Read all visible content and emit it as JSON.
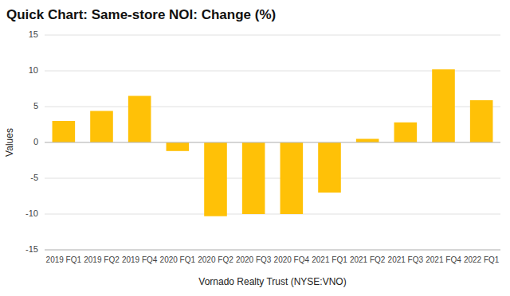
{
  "chart_data": {
    "type": "bar",
    "title": "Quick Chart: Same-store NOI: Change (%)",
    "xlabel": "Vornado Realty Trust (NYSE:VNO)",
    "ylabel": "Values",
    "categories": [
      "2019 FQ1",
      "2019 FQ2",
      "2019 FQ4",
      "2020 FQ1",
      "2020 FQ2",
      "2020 FQ3",
      "2020 FQ4",
      "2021 FQ1",
      "2021 FQ2",
      "2021 FQ3",
      "2021 FQ4",
      "2022 FQ1"
    ],
    "values": [
      3.0,
      4.4,
      6.5,
      -1.2,
      -10.3,
      -10.0,
      -10.0,
      -7.0,
      0.5,
      2.8,
      10.2,
      5.9
    ],
    "color": "#FFC107",
    "ylim": [
      -15,
      15
    ],
    "yticks": [
      -15,
      -10,
      -5,
      0,
      5,
      10,
      15
    ],
    "grid": true
  }
}
